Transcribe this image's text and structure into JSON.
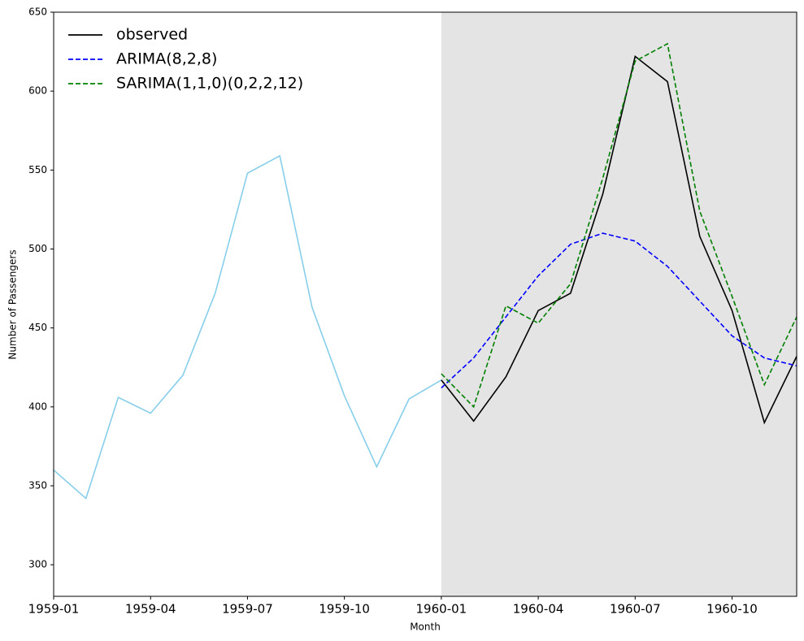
{
  "chart_data": {
    "type": "line",
    "xlabel": "Month",
    "ylabel": "Number of Passengers",
    "x": [
      "1959-01",
      "1959-02",
      "1959-03",
      "1959-04",
      "1959-05",
      "1959-06",
      "1959-07",
      "1959-08",
      "1959-09",
      "1959-10",
      "1959-11",
      "1959-12",
      "1960-01",
      "1960-02",
      "1960-03",
      "1960-04",
      "1960-05",
      "1960-06",
      "1960-07",
      "1960-08",
      "1960-09",
      "1960-10",
      "1960-11",
      "1960-12"
    ],
    "series": [
      {
        "color": "#87ceeb",
        "style": "solid",
        "values": [
          360,
          342,
          406,
          396,
          420,
          472,
          548,
          559,
          463,
          407,
          362,
          405,
          417,
          null,
          null,
          null,
          null,
          null,
          null,
          null,
          null,
          null,
          null,
          null
        ]
      },
      {
        "name": "observed",
        "color": "#000000",
        "style": "solid",
        "values": [
          null,
          null,
          null,
          null,
          null,
          null,
          null,
          null,
          null,
          null,
          null,
          null,
          417,
          391,
          419,
          461,
          472,
          535,
          622,
          606,
          508,
          461,
          390,
          432
        ]
      },
      {
        "name": "ARIMA(8,2,8)",
        "color": "#0000ff",
        "style": "dashed",
        "values": [
          null,
          null,
          null,
          null,
          null,
          null,
          null,
          null,
          null,
          null,
          null,
          null,
          412,
          431,
          457,
          483,
          503,
          510,
          505,
          489,
          467,
          445,
          431,
          426
        ]
      },
      {
        "name": "SARIMA(1,1,0)(0,2,2,12)",
        "color": "#008000",
        "style": "dashed",
        "values": [
          null,
          null,
          null,
          null,
          null,
          null,
          null,
          null,
          null,
          null,
          null,
          null,
          421,
          400,
          464,
          453,
          478,
          545,
          619,
          630,
          524,
          470,
          414,
          457
        ]
      }
    ],
    "shaded_region": [
      "1960-01",
      "1960-12"
    ],
    "shade_color": "#e4e4e4",
    "xlim": [
      "1959-01",
      "1960-12"
    ],
    "xticks": [
      "1959-01",
      "1959-04",
      "1959-07",
      "1959-10",
      "1960-01",
      "1960-04",
      "1960-07",
      "1960-10"
    ],
    "ylim": [
      280,
      650
    ],
    "yticks": [
      300,
      350,
      400,
      450,
      500,
      550,
      600,
      650
    ],
    "legend": "upper-left"
  }
}
